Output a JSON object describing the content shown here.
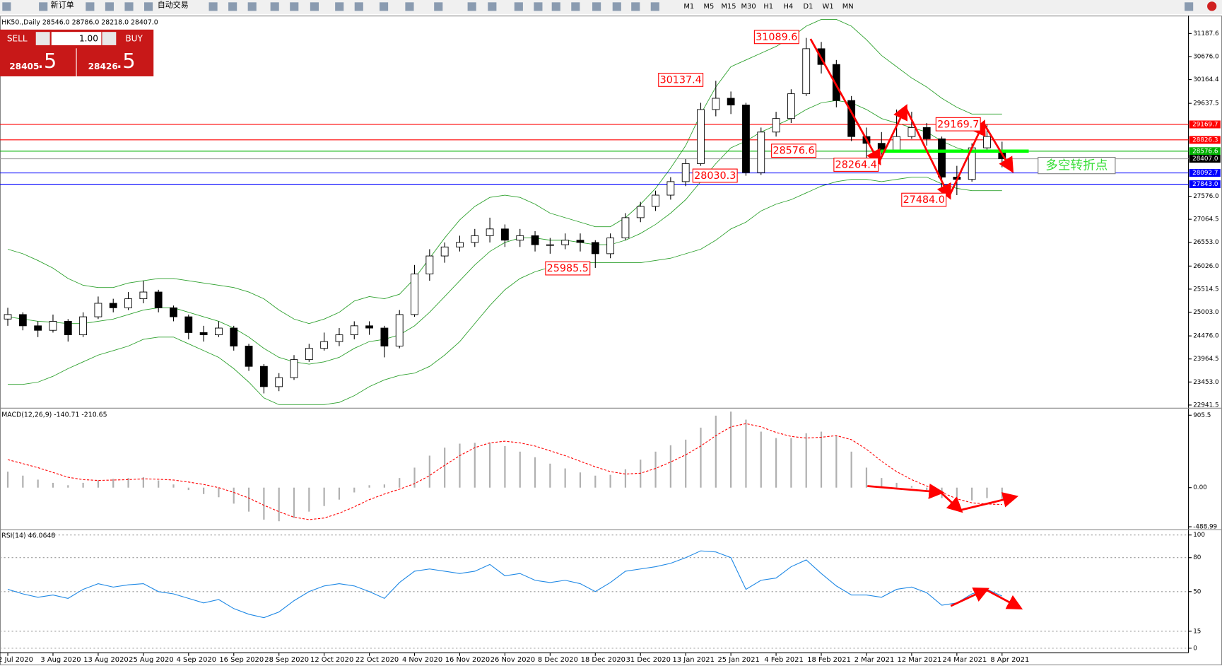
{
  "toolbar": {
    "new_order": "新订单",
    "auto_trading": "自动交易",
    "timeframes": [
      "M1",
      "M5",
      "M15",
      "M30",
      "H1",
      "H4",
      "D1",
      "W1",
      "MN"
    ]
  },
  "trade_panel": {
    "sell": "SELL",
    "buy": "BUY",
    "lots": "1.00",
    "sell_price": "28405",
    "sell_pips": ".5",
    "buy_price": "28426",
    "buy_pips": ".5"
  },
  "annotations": [
    "31089.6",
    "30137.4",
    "28576.6",
    "28264.4",
    "28030.3",
    "25985.5",
    "29169.7",
    "27484.0",
    "多空转折点"
  ],
  "chart_data": [
    {
      "type": "candlestick",
      "title": "HK50.,Daily  28546.0 28786.0 28218.0 28407.0",
      "categories": [
        "2 Jul 2020",
        null,
        null,
        "3 Aug 2020",
        null,
        null,
        "13 Aug 2020",
        null,
        null,
        "25 Aug 2020",
        null,
        null,
        "4 Sep 2020",
        null,
        null,
        "16 Sep 2020",
        null,
        null,
        "28 Sep 2020",
        null,
        null,
        "12 Oct 2020",
        null,
        null,
        "22 Oct 2020",
        null,
        null,
        "4 Nov 2020",
        null,
        null,
        "16 Nov 2020",
        null,
        null,
        "26 Nov 2020",
        null,
        null,
        "8 Dec 2020",
        null,
        null,
        "18 Dec 2020",
        null,
        null,
        "31 Dec 2020",
        null,
        null,
        "13 Jan 2021",
        null,
        null,
        "25 Jan 2021",
        null,
        null,
        "4 Feb 2021",
        null,
        null,
        "18 Feb 2021",
        null,
        null,
        "2 Mar 2021",
        null,
        null,
        "12 Mar 2021",
        null,
        null,
        "24 Mar 2021",
        null,
        null,
        "8 Apr 2021"
      ],
      "ohlc": [
        [
          24850,
          25100,
          24700,
          24950
        ],
        [
          24950,
          25000,
          24600,
          24700
        ],
        [
          24700,
          24800,
          24450,
          24600
        ],
        [
          24600,
          24950,
          24550,
          24800
        ],
        [
          24800,
          24850,
          24350,
          24500
        ],
        [
          24500,
          25000,
          24450,
          24900
        ],
        [
          24900,
          25350,
          24850,
          25200
        ],
        [
          25200,
          25300,
          25000,
          25100
        ],
        [
          25100,
          25450,
          25050,
          25300
        ],
        [
          25300,
          25700,
          25200,
          25450
        ],
        [
          25450,
          25500,
          25000,
          25100
        ],
        [
          25100,
          25150,
          24800,
          24900
        ],
        [
          24900,
          24950,
          24400,
          24550
        ],
        [
          24550,
          24700,
          24350,
          24500
        ],
        [
          24500,
          24800,
          24450,
          24650
        ],
        [
          24650,
          24700,
          24150,
          24250
        ],
        [
          24250,
          24300,
          23700,
          23800
        ],
        [
          23800,
          23850,
          23200,
          23350
        ],
        [
          23350,
          23650,
          23250,
          23550
        ],
        [
          23550,
          24050,
          23500,
          23950
        ],
        [
          23950,
          24300,
          23900,
          24200
        ],
        [
          24200,
          24550,
          24150,
          24350
        ],
        [
          24350,
          24650,
          24250,
          24500
        ],
        [
          24500,
          24800,
          24400,
          24700
        ],
        [
          24700,
          24800,
          24500,
          24650
        ],
        [
          24650,
          24700,
          24000,
          24250
        ],
        [
          24250,
          25050,
          24200,
          24950
        ],
        [
          24950,
          26050,
          24900,
          25850
        ],
        [
          25850,
          26400,
          25700,
          26250
        ],
        [
          26250,
          26550,
          26100,
          26450
        ],
        [
          26450,
          26700,
          26350,
          26550
        ],
        [
          26550,
          26850,
          26450,
          26700
        ],
        [
          26700,
          27100,
          26550,
          26850
        ],
        [
          26850,
          26950,
          26450,
          26600
        ],
        [
          26600,
          26850,
          26450,
          26700
        ],
        [
          26700,
          26800,
          26350,
          26500
        ],
        [
          26500,
          26650,
          26300,
          26500
        ],
        [
          26500,
          26750,
          26400,
          26600
        ],
        [
          26600,
          26750,
          26350,
          26550
        ],
        [
          26550,
          26600,
          25985.5,
          26300
        ],
        [
          26300,
          26750,
          26200,
          26650
        ],
        [
          26650,
          27200,
          26600,
          27100
        ],
        [
          27100,
          27450,
          27000,
          27350
        ],
        [
          27350,
          27700,
          27250,
          27600
        ],
        [
          27600,
          28000,
          27500,
          27900
        ],
        [
          27900,
          28400,
          27800,
          28300
        ],
        [
          28300,
          29650,
          28250,
          29500
        ],
        [
          29500,
          30137.4,
          29350,
          29750
        ],
        [
          29750,
          29900,
          29400,
          29600
        ],
        [
          29600,
          29650,
          28030.3,
          28100
        ],
        [
          28100,
          29100,
          28050,
          29000
        ],
        [
          29000,
          29450,
          28900,
          29300
        ],
        [
          29300,
          29950,
          29200,
          29850
        ],
        [
          29850,
          31089.6,
          29800,
          30850
        ],
        [
          30850,
          31000,
          30300,
          30500
        ],
        [
          30500,
          30600,
          29550,
          29700
        ],
        [
          29700,
          29800,
          28800,
          28900
        ],
        [
          28900,
          29100,
          28264.4,
          28750
        ],
        [
          28750,
          29000,
          28500,
          28600
        ],
        [
          28600,
          29500,
          28550,
          28900
        ],
        [
          28900,
          29450,
          28850,
          29100
        ],
        [
          29100,
          29200,
          28700,
          28850
        ],
        [
          28850,
          28900,
          27484.0,
          28000
        ],
        [
          28000,
          28250,
          27600,
          27950
        ],
        [
          27950,
          28750,
          27900,
          28650
        ],
        [
          28650,
          29169.7,
          28550,
          28900
        ],
        [
          28546,
          28786,
          28218,
          28407
        ]
      ],
      "bands": {
        "color": "#2ca02c",
        "upper": [
          26400,
          26300,
          26150,
          25980,
          25750,
          25600,
          25550,
          25550,
          25650,
          25700,
          25750,
          25750,
          25700,
          25650,
          25600,
          25550,
          25450,
          25300,
          25050,
          24850,
          24750,
          24850,
          25000,
          25250,
          25350,
          25300,
          25400,
          25750,
          26200,
          26650,
          27050,
          27350,
          27550,
          27600,
          27550,
          27400,
          27200,
          27100,
          27000,
          26900,
          26900,
          27100,
          27400,
          27750,
          28200,
          28700,
          29400,
          30000,
          30450,
          30600,
          30750,
          30900,
          31100,
          31350,
          31500,
          31500,
          31350,
          31050,
          30700,
          30450,
          30200,
          30000,
          29750,
          29550,
          29400,
          29400,
          29400
        ],
        "middle": [
          24900,
          24850,
          24800,
          24780,
          24750,
          24750,
          24800,
          24850,
          24950,
          25050,
          25100,
          25100,
          25000,
          24900,
          24800,
          24650,
          24450,
          24200,
          24000,
          23900,
          23850,
          23900,
          24000,
          24200,
          24350,
          24400,
          24500,
          24700,
          25000,
          25350,
          25700,
          26050,
          26350,
          26550,
          26650,
          26650,
          26600,
          26600,
          26550,
          26500,
          26500,
          26600,
          26750,
          26950,
          27200,
          27500,
          27900,
          28300,
          28650,
          28800,
          29000,
          29150,
          29300,
          29500,
          29650,
          29700,
          29650,
          29500,
          29300,
          29200,
          29100,
          29000,
          28800,
          28650,
          28550,
          28550,
          28550
        ],
        "lower": [
          23400,
          23400,
          23450,
          23580,
          23750,
          23900,
          24050,
          24150,
          24250,
          24400,
          24450,
          24450,
          24300,
          24150,
          24000,
          23750,
          23450,
          23100,
          22950,
          22950,
          22950,
          22950,
          23000,
          23150,
          23350,
          23500,
          23600,
          23650,
          23800,
          24050,
          24350,
          24750,
          25150,
          25500,
          25750,
          25900,
          26000,
          26100,
          26100,
          26100,
          26100,
          26100,
          26100,
          26150,
          26200,
          26300,
          26400,
          26600,
          26850,
          27000,
          27250,
          27400,
          27500,
          27650,
          27800,
          27900,
          27950,
          27950,
          27900,
          27950,
          28000,
          28000,
          27850,
          27750,
          27700,
          27700,
          27700
        ]
      },
      "levels": [
        {
          "value": 29169.7,
          "label": "29169.7",
          "color": "#ff0000"
        },
        {
          "value": 28826.3,
          "label": "28826.3",
          "color": "#ff0000"
        },
        {
          "value": 28576.6,
          "label": "28576.6",
          "color": "#00b000"
        },
        {
          "value": 28407.0,
          "label": "28407.0",
          "color": "#000000"
        },
        {
          "value": 28092.7,
          "label": "28092.7",
          "color": "#0000ff"
        },
        {
          "value": 27843.0,
          "label": "27843.0",
          "color": "#0000ff"
        }
      ],
      "ylim": [
        22889.6,
        31550.6
      ],
      "yticks": [
        31187.6,
        {
          "value": 30676,
          "label": "30676.0"
        },
        30164.4,
        29637.5,
        {
          "value": 27576,
          "label": "27576.0"
        },
        27064.5,
        {
          "value": 26553,
          "label": "26553.0"
        },
        {
          "value": 26026,
          "label": "26026.0"
        },
        25514.5,
        {
          "value": 25003,
          "label": "25003.0"
        },
        {
          "value": 24476,
          "label": "24476.0"
        },
        23964.5,
        {
          "value": 23453,
          "label": "23453.0"
        },
        22941.5
      ],
      "grid": false
    },
    {
      "type": "macd",
      "title": "MACD(12,26,9) -140.71 -210.65",
      "hist_color": "#b0b0b0",
      "signal_color": "#ff0000",
      "histogram": [
        200,
        150,
        100,
        60,
        30,
        60,
        90,
        110,
        120,
        130,
        90,
        40,
        -30,
        -80,
        -120,
        -200,
        -300,
        -400,
        -420,
        -380,
        -300,
        -230,
        -150,
        -60,
        30,
        40,
        120,
        250,
        400,
        500,
        550,
        560,
        560,
        520,
        450,
        380,
        300,
        240,
        190,
        150,
        160,
        230,
        350,
        450,
        530,
        600,
        750,
        900,
        950,
        850,
        700,
        620,
        620,
        680,
        700,
        650,
        450,
        250,
        120,
        60,
        20,
        -30,
        -130,
        -200,
        -160,
        -130,
        -140.71
      ],
      "signal": [
        350,
        300,
        250,
        190,
        130,
        100,
        90,
        95,
        100,
        110,
        105,
        95,
        70,
        40,
        0,
        -60,
        -130,
        -220,
        -300,
        -370,
        -400,
        -380,
        -320,
        -240,
        -150,
        -80,
        -20,
        50,
        150,
        280,
        400,
        500,
        560,
        580,
        560,
        520,
        460,
        400,
        330,
        260,
        200,
        170,
        180,
        240,
        320,
        410,
        520,
        650,
        760,
        800,
        760,
        690,
        640,
        620,
        630,
        650,
        600,
        480,
        330,
        200,
        100,
        20,
        -60,
        -140,
        -190,
        -205,
        -210.65
      ],
      "ylim": [
        -516,
        974
      ],
      "yticks": [
        905.5,
        {
          "value": 0,
          "label": "0.00"
        },
        -488.99
      ],
      "grid": false
    },
    {
      "type": "line",
      "title": "RSI(14) 46.0648",
      "color": "#1e88e5",
      "values": [
        52,
        48,
        45,
        47,
        44,
        52,
        57,
        54,
        56,
        57,
        50,
        48,
        44,
        40,
        43,
        35,
        30,
        27,
        32,
        42,
        50,
        55,
        57,
        55,
        50,
        44,
        58,
        68,
        70,
        68,
        66,
        68,
        74,
        64,
        66,
        60,
        58,
        60,
        57,
        50,
        58,
        68,
        70,
        72,
        75,
        80,
        86,
        85,
        80,
        52,
        60,
        62,
        72,
        78,
        66,
        55,
        47,
        47,
        45,
        52,
        54,
        49,
        38,
        40,
        48,
        52,
        46.06
      ],
      "ylim": [
        -4,
        104
      ],
      "yticks": [
        100,
        80,
        50,
        15,
        0
      ],
      "grid": true
    }
  ]
}
